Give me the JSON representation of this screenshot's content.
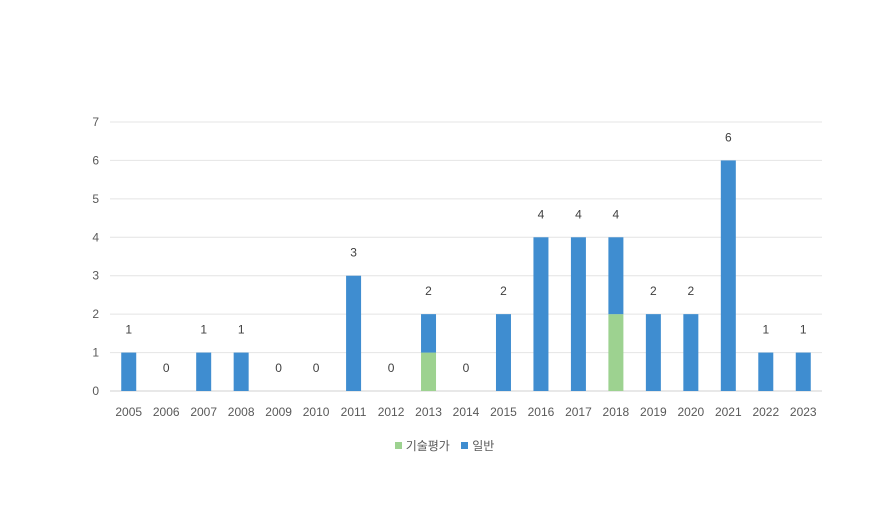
{
  "chart_data": {
    "type": "bar",
    "stacked": true,
    "categories": [
      "2005",
      "2006",
      "2007",
      "2008",
      "2009",
      "2010",
      "2011",
      "2012",
      "2013",
      "2014",
      "2015",
      "2016",
      "2017",
      "2018",
      "2019",
      "2020",
      "2021",
      "2022",
      "2023"
    ],
    "series": [
      {
        "name": "기술평가",
        "color": "#9DD290",
        "values": [
          0,
          0,
          0,
          0,
          0,
          0,
          0,
          0,
          1,
          0,
          0,
          0,
          0,
          2,
          0,
          0,
          0,
          0,
          0
        ]
      },
      {
        "name": "일반",
        "color": "#3F8DD0",
        "values": [
          1,
          0,
          1,
          1,
          0,
          0,
          3,
          0,
          1,
          0,
          2,
          4,
          4,
          2,
          2,
          2,
          6,
          1,
          1
        ]
      }
    ],
    "totals": [
      1,
      0,
      1,
      1,
      0,
      0,
      3,
      0,
      2,
      0,
      2,
      4,
      4,
      4,
      2,
      2,
      6,
      1,
      1
    ],
    "ylim": [
      0,
      7
    ],
    "yticks": [
      0,
      1,
      2,
      3,
      4,
      5,
      6,
      7
    ],
    "grid": true,
    "legend_position": "bottom"
  }
}
